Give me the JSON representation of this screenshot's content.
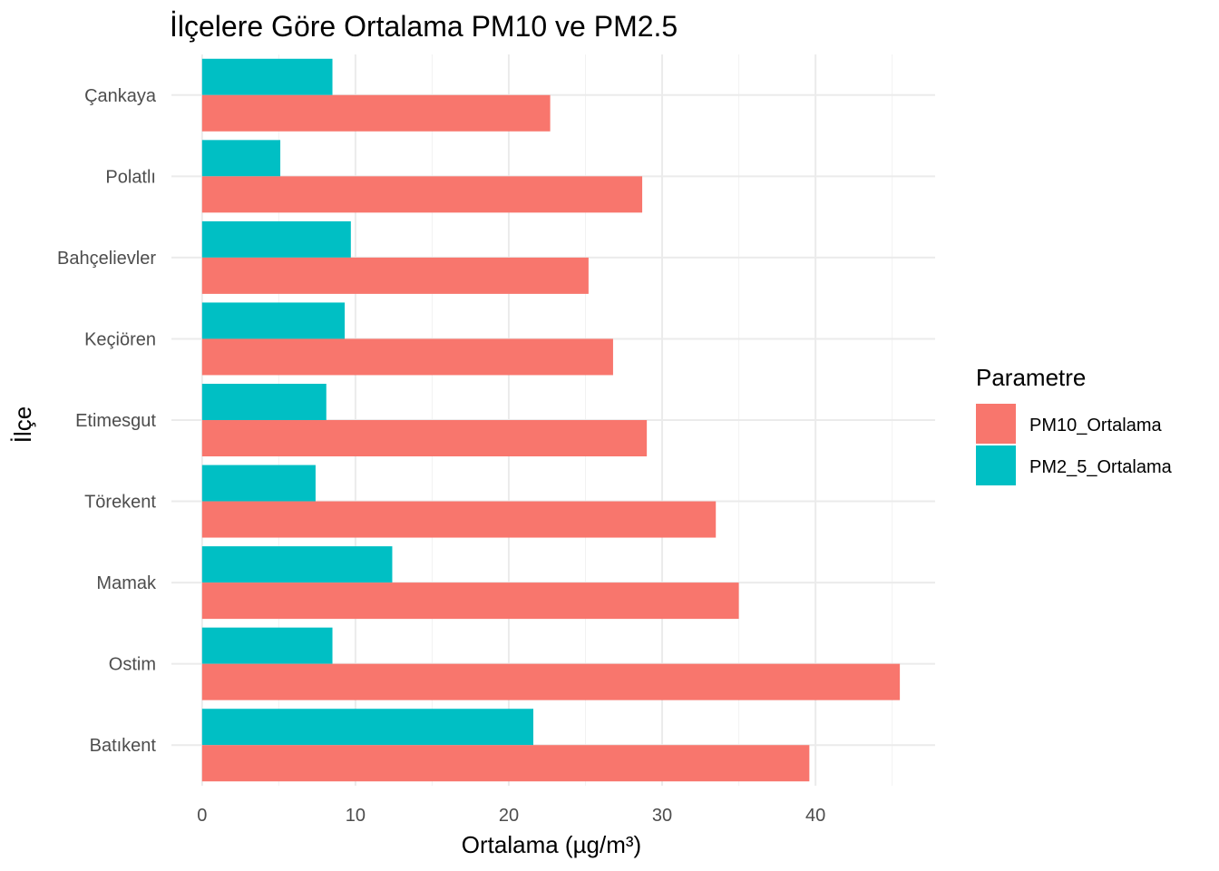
{
  "chart_data": {
    "type": "bar",
    "orientation": "horizontal",
    "title": "İlçelere Göre Ortalama PM10 ve PM2.5",
    "xlabel": "Ortalama (µg/m³)",
    "ylabel": "İlçe",
    "categories": [
      "Çankaya",
      "Polatlı",
      "Bahçelievler",
      "Keçiören",
      "Etimesgut",
      "Törekent",
      "Mamak",
      "Ostim",
      "Batıkent"
    ],
    "series": [
      {
        "name": "PM10_Ortalama",
        "color": "#F8766D",
        "values": [
          22.7,
          28.7,
          25.2,
          26.8,
          29.0,
          33.5,
          35.0,
          45.5,
          39.6
        ]
      },
      {
        "name": "PM2_5_Ortalama",
        "color": "#00BFC4",
        "values": [
          8.5,
          5.1,
          9.7,
          9.3,
          8.1,
          7.4,
          12.4,
          8.5,
          21.6
        ]
      }
    ],
    "xlim": [
      -2,
      47.8
    ],
    "xticks": [
      0,
      10,
      20,
      30,
      40
    ],
    "grid": true,
    "legend": {
      "title": "Parametre",
      "position": "right"
    }
  }
}
